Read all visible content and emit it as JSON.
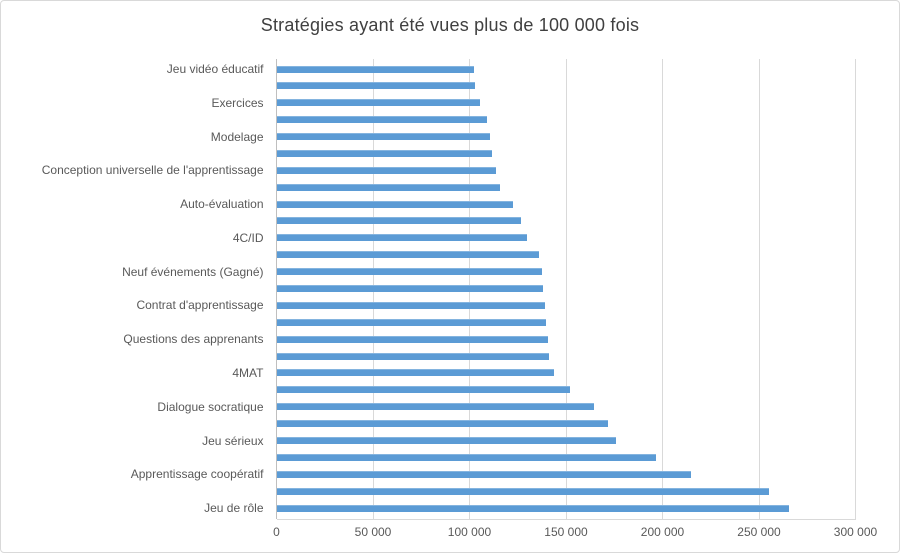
{
  "title": "Stratégies ayant été vues plus de 100 000 fois",
  "colors": {
    "bar": "#5b9bd5",
    "grid": "#d9d9d9",
    "axis_zero_line": "#bfbfbf",
    "title_text": "#404040",
    "axis_text": "#595959",
    "border": "#d9d9d9"
  },
  "chart_data": {
    "type": "bar",
    "orientation": "horizontal",
    "title": "Stratégies ayant été vues plus de 100 000 fois",
    "xlabel": "",
    "ylabel": "",
    "xlim": [
      0,
      300000
    ],
    "grid": "vertical-only",
    "legend": "none",
    "x_tick_values": [
      0,
      50000,
      100000,
      150000,
      200000,
      250000,
      300000
    ],
    "x_tick_labels": [
      "0",
      "50 000",
      "100 000",
      "150 000",
      "200 000",
      "250 000",
      "300 000"
    ],
    "note": "Category labels are shown for every second bar only (unlabeled bars have empty-string category).",
    "categories": [
      "Jeu vidéo éducatif",
      "",
      "Exercices",
      "",
      "Modelage",
      "",
      "Conception universelle de l'apprentissage",
      "",
      "Auto-évaluation",
      "",
      "4C/ID",
      "",
      "Neuf événements (Gagné)",
      "",
      "Contrat d'apprentissage",
      "",
      "Questions des apprenants",
      "",
      "4MAT",
      "",
      "Dialogue socratique",
      "",
      "Jeu sérieux",
      "",
      "Apprentissage coopératif",
      "",
      "Jeu de rôle"
    ],
    "values": [
      102000,
      102500,
      105000,
      109000,
      110500,
      111500,
      113500,
      115500,
      122500,
      126500,
      129500,
      136000,
      137500,
      138000,
      139000,
      139500,
      140500,
      141000,
      143500,
      152000,
      164000,
      171500,
      175500,
      196500,
      214500,
      255000,
      265500
    ]
  }
}
